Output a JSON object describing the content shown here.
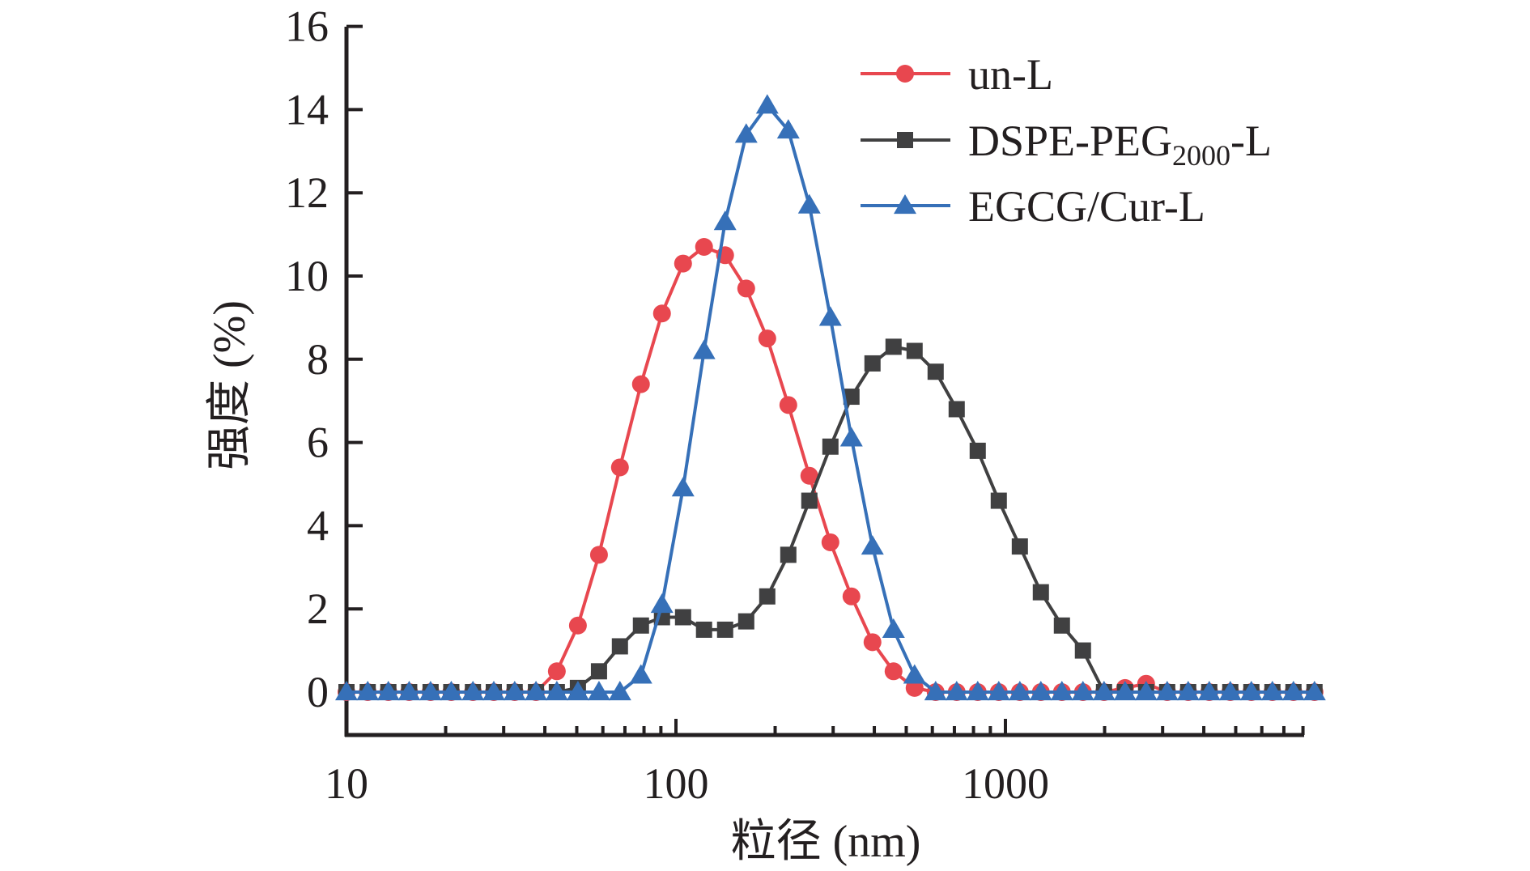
{
  "chart_data": {
    "type": "line",
    "title": "",
    "xlabel": "粒径 (nm)",
    "ylabel": "强度 (%)",
    "xscale": "log",
    "xlim": [
      10,
      8000
    ],
    "ylim": [
      -1,
      16
    ],
    "x_ticks": [
      10,
      100,
      1000
    ],
    "x_tick_labels": [
      "10",
      "100",
      "1000"
    ],
    "y_ticks": [
      0,
      2,
      4,
      6,
      8,
      10,
      12,
      14,
      16
    ],
    "y_tick_labels": [
      "0",
      "2",
      "4",
      "6",
      "8",
      "10",
      "12",
      "14",
      "16"
    ],
    "grid": false,
    "legend_position": "top-right",
    "x": [
      10.0,
      11.6,
      13.4,
      15.5,
      18.0,
      20.8,
      24.2,
      28.0,
      32.4,
      37.6,
      43.5,
      50.4,
      58.4,
      67.6,
      78.3,
      90.7,
      105.1,
      121.7,
      141.0,
      163.4,
      189.3,
      219.3,
      254.0,
      294.3,
      340.9,
      394.9,
      457.5,
      530.0,
      614.0,
      711.3,
      824.0,
      954.6,
      1106,
      1281,
      1484,
      1719,
      1992,
      2307,
      2673,
      3097,
      3587,
      4156,
      4814,
      5577,
      6461,
      7485,
      8671
    ],
    "series": [
      {
        "name": "un-L",
        "legend_main": "un-L",
        "legend_sub": "",
        "legend_suffix": "",
        "color": "#e8474f",
        "marker": "circle",
        "values": [
          0,
          0,
          0,
          0,
          0,
          0,
          0,
          0,
          0,
          0,
          0.5,
          1.6,
          3.3,
          5.4,
          7.4,
          9.1,
          10.3,
          10.7,
          10.5,
          9.7,
          8.5,
          6.9,
          5.2,
          3.6,
          2.3,
          1.2,
          0.5,
          0.1,
          0,
          0,
          0,
          0,
          0,
          0,
          0,
          0,
          0,
          0.1,
          0.2,
          0,
          0,
          0,
          0,
          0,
          0,
          0,
          0
        ]
      },
      {
        "name": "DSPE-PEG2000-L",
        "legend_main": "DSPE-PEG",
        "legend_sub": "2000",
        "legend_suffix": "-L",
        "color": "#404041",
        "marker": "square",
        "values": [
          0,
          0,
          0,
          0,
          0,
          0,
          0,
          0,
          0,
          0,
          0,
          0.1,
          0.5,
          1.1,
          1.6,
          1.8,
          1.8,
          1.5,
          1.5,
          1.7,
          2.3,
          3.3,
          4.6,
          5.9,
          7.1,
          7.9,
          8.3,
          8.2,
          7.7,
          6.8,
          5.8,
          4.6,
          3.5,
          2.4,
          1.6,
          1.0,
          0,
          0,
          0,
          0,
          0,
          0,
          0,
          0,
          0,
          0,
          0
        ]
      },
      {
        "name": "EGCG/Cur-L",
        "legend_main": "EGCG/Cur-L",
        "legend_sub": "",
        "legend_suffix": "",
        "color": "#3670b8",
        "marker": "triangle",
        "values": [
          0,
          0,
          0,
          0,
          0,
          0,
          0,
          0,
          0,
          0,
          0,
          0,
          0,
          0,
          0.4,
          2.1,
          4.9,
          8.2,
          11.3,
          13.4,
          14.1,
          13.5,
          11.7,
          9.0,
          6.1,
          3.5,
          1.5,
          0.4,
          0,
          0,
          0,
          0,
          0,
          0,
          0,
          0,
          0,
          0,
          0,
          0,
          0,
          0,
          0,
          0,
          0,
          0,
          0
        ]
      }
    ]
  }
}
